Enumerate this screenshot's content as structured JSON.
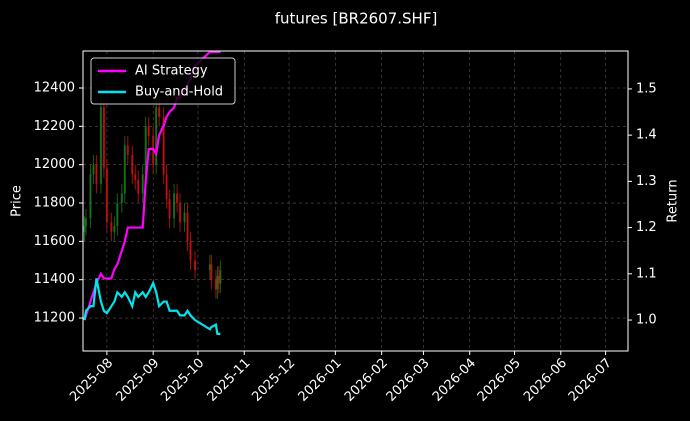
{
  "chart_data": {
    "type": "candlestick_with_returns",
    "title": "futures [BR2607.SHF]",
    "ylabel": "Price",
    "y2label": "Return",
    "x": [
      "2025-07-17",
      "2025-07-18",
      "2025-07-21",
      "2025-07-23",
      "2025-07-25",
      "2025-07-28",
      "2025-07-30",
      "2025-08-01",
      "2025-08-04",
      "2025-08-06",
      "2025-08-08",
      "2025-08-11",
      "2025-08-13",
      "2025-08-15",
      "2025-08-18",
      "2025-08-20",
      "2025-08-22",
      "2025-08-25",
      "2025-08-27",
      "2025-08-29",
      "2025-09-01",
      "2025-09-03",
      "2025-09-05",
      "2025-09-08",
      "2025-09-10",
      "2025-09-12",
      "2025-09-15",
      "2025-09-17",
      "2025-09-19",
      "2025-09-22",
      "2025-09-24",
      "2025-09-26",
      "2025-09-29",
      "2025-10-09",
      "2025-10-10",
      "2025-10-13",
      "2025-10-14",
      "2025-10-15",
      "2025-10-16"
    ],
    "candles": {
      "up_color": "#1a7a1a",
      "down_color": "#d01010",
      "open": [
        11650,
        11680,
        11720,
        11950,
        12000,
        11900,
        12300,
        11980,
        11700,
        11650,
        11680,
        11800,
        11850,
        12100,
        12050,
        11950,
        11920,
        11850,
        11950,
        12200,
        12150,
        12000,
        12300,
        12250,
        11950,
        11820,
        11720,
        11850,
        11800,
        11700,
        11750,
        11600,
        11500,
        11450,
        11480,
        11400,
        11350,
        11420,
        11380
      ],
      "high": [
        11730,
        11770,
        12000,
        12050,
        12050,
        12350,
        12350,
        12030,
        11750,
        11730,
        11850,
        11900,
        12150,
        12150,
        12100,
        12000,
        11970,
        12000,
        12250,
        12250,
        12200,
        12350,
        12350,
        12300,
        12000,
        11870,
        11900,
        11900,
        11850,
        11800,
        11800,
        11650,
        11550,
        11530,
        11530,
        11450,
        11470,
        11470,
        11500
      ],
      "low": [
        11600,
        11630,
        11670,
        11900,
        11850,
        11850,
        11930,
        11650,
        11600,
        11600,
        11630,
        11750,
        11800,
        12000,
        11900,
        11870,
        11800,
        11800,
        11900,
        12100,
        11950,
        11950,
        12200,
        11900,
        11770,
        11670,
        11670,
        11750,
        11650,
        11650,
        11550,
        11450,
        11400,
        11400,
        11350,
        11300,
        11300,
        11330,
        11330
      ],
      "close": [
        11680,
        11720,
        11950,
        12000,
        11900,
        12300,
        11980,
        11700,
        11650,
        11680,
        11800,
        11850,
        12100,
        12050,
        11950,
        11920,
        11850,
        11950,
        12200,
        12150,
        12000,
        12300,
        12250,
        11950,
        11820,
        11720,
        11850,
        11800,
        11700,
        11750,
        11600,
        11500,
        11450,
        11480,
        11400,
        11350,
        11420,
        11380,
        11450
      ]
    },
    "series": [
      {
        "name": "AI Strategy",
        "color": "#ff00ff",
        "axis": "y2",
        "values": [
          1.0,
          1.01,
          1.04,
          1.06,
          1.08,
          1.1,
          1.09,
          1.09,
          1.09,
          1.11,
          1.12,
          1.15,
          1.17,
          1.2,
          1.2,
          1.2,
          1.2,
          1.2,
          1.3,
          1.37,
          1.37,
          1.36,
          1.4,
          1.42,
          1.44,
          1.45,
          1.46,
          1.48,
          1.48,
          1.5,
          1.51,
          1.52,
          1.55,
          1.58,
          1.58,
          1.58,
          1.58,
          1.58,
          1.58
        ]
      },
      {
        "name": "Buy-and-Hold",
        "color": "#00e5ee",
        "axis": "y2",
        "values": [
          1.0,
          1.02,
          1.03,
          1.03,
          1.09,
          1.04,
          1.02,
          1.015,
          1.03,
          1.04,
          1.06,
          1.05,
          1.06,
          1.05,
          1.03,
          1.06,
          1.05,
          1.06,
          1.05,
          1.06,
          1.08,
          1.06,
          1.03,
          1.04,
          1.04,
          1.02,
          1.02,
          1.02,
          1.01,
          1.01,
          1.02,
          1.01,
          1.0,
          0.98,
          0.985,
          0.99,
          0.97,
          0.97,
          0.97
        ]
      }
    ],
    "xlim": [
      "2025-07-16",
      "2026-07-16"
    ],
    "xticks": [
      "2025-08",
      "2025-09",
      "2025-10",
      "2025-11",
      "2025-12",
      "2026-01",
      "2026-02",
      "2026-03",
      "2026-04",
      "2026-05",
      "2026-06",
      "2026-07"
    ],
    "ylim": [
      11028,
      12593
    ],
    "yticks": [
      11200,
      11400,
      11600,
      11800,
      12000,
      12200,
      12400
    ],
    "y2lim": [
      0.933,
      1.582
    ],
    "y2ticks": [
      {
        "value": 1.0,
        "label": "1.0"
      },
      {
        "value": 1.1,
        "label": "1.1"
      },
      {
        "value": 1.2,
        "label": "1.2"
      },
      {
        "value": 1.3,
        "label": "1.3"
      },
      {
        "value": 1.4,
        "label": "1.4"
      },
      {
        "value": 1.5,
        "label": "1.5"
      }
    ],
    "grid": true,
    "legend": "upper left"
  }
}
